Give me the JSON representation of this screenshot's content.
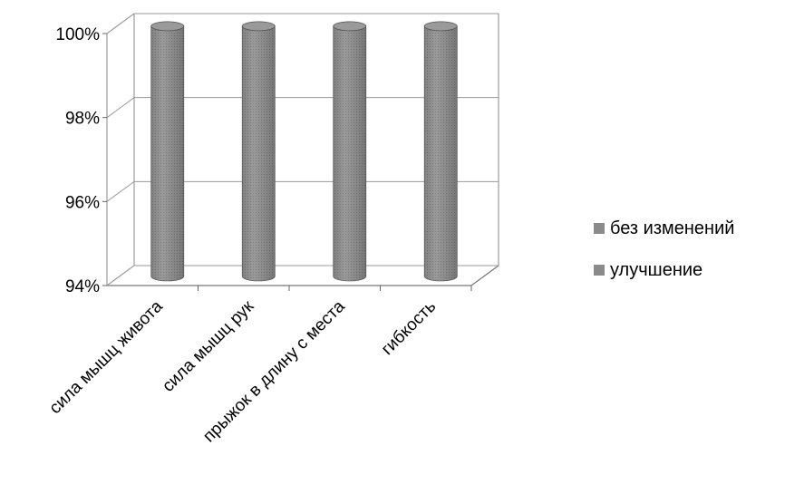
{
  "chart_data": {
    "type": "bar",
    "style": "3d-cylinder",
    "categories": [
      "сила мышц живота",
      "сила мышц рук",
      "прыжок в длину с места",
      "гибкость"
    ],
    "series": [
      {
        "name": "без изменений",
        "values": [
          0,
          0,
          0,
          0
        ],
        "color": "#8a8a8a"
      },
      {
        "name": "улучшение",
        "values": [
          100,
          100,
          100,
          100
        ],
        "color": "#8a8a8a"
      }
    ],
    "ylim": [
      94,
      100
    ],
    "yticks": [
      "100%",
      "98%",
      "96%",
      "94%"
    ],
    "ytick_values": [
      100,
      98,
      96,
      94
    ],
    "grid": true,
    "legend_position": "right"
  }
}
